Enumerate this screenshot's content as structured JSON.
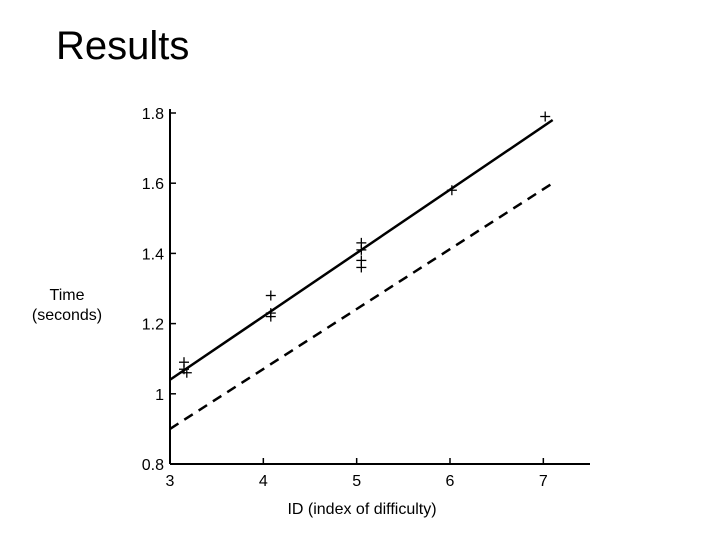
{
  "slide": {
    "title": "Results"
  },
  "chart_data": {
    "type": "scatter",
    "xlabel": "ID (index of difficulty)",
    "ylabel_lines": [
      "Time",
      "(seconds)"
    ],
    "xlim": [
      3,
      7.5
    ],
    "ylim": [
      0.8,
      1.8
    ],
    "xticks": [
      "3",
      "4",
      "5",
      "6",
      "7"
    ],
    "yticks": [
      "0.8",
      "1",
      "1.2",
      "1.4",
      "1.6",
      "1.8"
    ],
    "grid": false,
    "points": [
      {
        "x": 3.15,
        "y": 1.09
      },
      {
        "x": 3.15,
        "y": 1.07
      },
      {
        "x": 3.18,
        "y": 1.06
      },
      {
        "x": 4.08,
        "y": 1.28
      },
      {
        "x": 4.08,
        "y": 1.23
      },
      {
        "x": 4.08,
        "y": 1.22
      },
      {
        "x": 5.05,
        "y": 1.43
      },
      {
        "x": 5.05,
        "y": 1.41
      },
      {
        "x": 5.05,
        "y": 1.38
      },
      {
        "x": 5.05,
        "y": 1.36
      },
      {
        "x": 6.02,
        "y": 1.58
      },
      {
        "x": 7.02,
        "y": 1.79
      }
    ],
    "lines": [
      {
        "style": "solid",
        "x": [
          3,
          7.1
        ],
        "y": [
          1.04,
          1.78
        ]
      },
      {
        "style": "dashed",
        "x": [
          3,
          7.1
        ],
        "y": [
          0.9,
          1.6
        ]
      }
    ]
  }
}
